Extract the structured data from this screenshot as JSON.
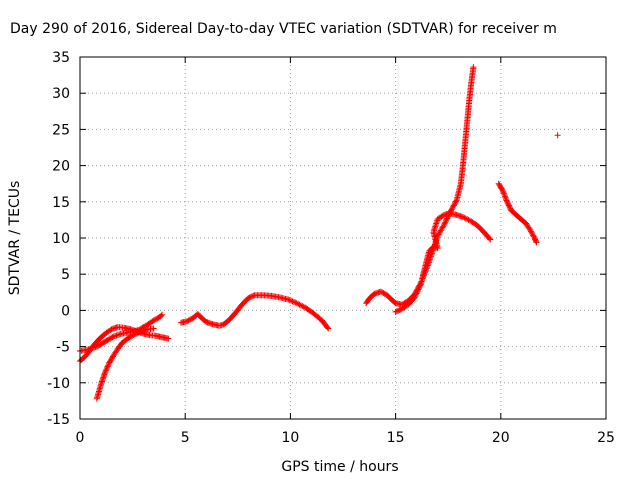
{
  "chart_data": {
    "type": "scatter",
    "title": "Day 290 of 2016, Sidereal Day-to-day VTEC variation (SDTVAR) for receiver m",
    "xlabel": "GPS time / hours",
    "ylabel": "SDTVAR / TECUs",
    "xlim": [
      0,
      25
    ],
    "ylim": [
      -15,
      35
    ],
    "xticks": [
      "0",
      "5",
      "10",
      "15",
      "20",
      "25"
    ],
    "yticks": [
      "-15",
      "-10",
      "-5",
      "0",
      "5",
      "10",
      "15",
      "20",
      "25",
      "30",
      "35"
    ],
    "grid": true,
    "marker": "+",
    "color": "#ff0000",
    "series": [
      {
        "name": "",
        "segments": [
          [
            [
              0.0,
              -7.0
            ],
            [
              0.3,
              -6.2
            ],
            [
              0.6,
              -5.0
            ],
            [
              0.9,
              -4.0
            ],
            [
              1.2,
              -3.2
            ],
            [
              1.5,
              -2.6
            ],
            [
              1.8,
              -2.3
            ],
            [
              2.1,
              -2.4
            ],
            [
              2.4,
              -2.6
            ],
            [
              2.7,
              -2.9
            ],
            [
              3.0,
              -3.2
            ],
            [
              3.3,
              -3.4
            ],
            [
              3.6,
              -3.5
            ],
            [
              3.9,
              -3.7
            ],
            [
              4.2,
              -3.9
            ]
          ],
          [
            [
              0.0,
              -5.6
            ],
            [
              0.4,
              -5.4
            ],
            [
              0.8,
              -5.0
            ],
            [
              1.2,
              -4.3
            ],
            [
              1.6,
              -3.6
            ],
            [
              2.0,
              -3.2
            ],
            [
              2.4,
              -3.0
            ],
            [
              2.8,
              -2.7
            ],
            [
              3.2,
              -2.0
            ],
            [
              3.5,
              -1.4
            ],
            [
              3.8,
              -0.9
            ],
            [
              3.9,
              -0.6
            ]
          ],
          [
            [
              0.8,
              -12.2
            ],
            [
              1.0,
              -10.2
            ],
            [
              1.2,
              -8.5
            ],
            [
              1.4,
              -7.2
            ],
            [
              1.6,
              -6.2
            ],
            [
              1.8,
              -5.3
            ],
            [
              2.0,
              -4.5
            ],
            [
              2.3,
              -3.8
            ],
            [
              2.6,
              -3.3
            ],
            [
              2.9,
              -2.9
            ],
            [
              3.2,
              -2.6
            ],
            [
              3.5,
              -2.5
            ]
          ],
          [
            [
              4.8,
              -1.7
            ],
            [
              5.1,
              -1.5
            ],
            [
              5.4,
              -1.0
            ],
            [
              5.6,
              -0.5
            ],
            [
              5.8,
              -1.1
            ],
            [
              6.0,
              -1.6
            ],
            [
              6.3,
              -1.9
            ],
            [
              6.6,
              -2.1
            ],
            [
              6.8,
              -2.0
            ],
            [
              7.1,
              -1.3
            ],
            [
              7.4,
              -0.3
            ],
            [
              7.7,
              0.8
            ],
            [
              8.0,
              1.7
            ],
            [
              8.3,
              2.1
            ],
            [
              8.7,
              2.1
            ],
            [
              9.1,
              2.0
            ],
            [
              9.5,
              1.8
            ],
            [
              9.9,
              1.5
            ],
            [
              10.3,
              1.0
            ],
            [
              10.7,
              0.4
            ],
            [
              11.1,
              -0.4
            ],
            [
              11.5,
              -1.4
            ],
            [
              11.8,
              -2.5
            ]
          ],
          [
            [
              13.6,
              1.0
            ],
            [
              13.8,
              1.8
            ],
            [
              14.0,
              2.3
            ],
            [
              14.3,
              2.6
            ],
            [
              14.6,
              2.1
            ],
            [
              14.8,
              1.5
            ],
            [
              15.0,
              1.0
            ],
            [
              15.3,
              0.8
            ],
            [
              15.6,
              1.3
            ],
            [
              15.9,
              2.2
            ],
            [
              16.2,
              3.8
            ],
            [
              16.5,
              6.0
            ],
            [
              16.8,
              8.5
            ],
            [
              17.0,
              10.3
            ],
            [
              17.3,
              11.8
            ],
            [
              17.6,
              13.6
            ],
            [
              17.9,
              15.2
            ],
            [
              18.1,
              17.5
            ],
            [
              18.2,
              20.0
            ],
            [
              18.3,
              23.0
            ],
            [
              18.4,
              26.0
            ],
            [
              18.5,
              29.0
            ],
            [
              18.6,
              31.5
            ],
            [
              18.7,
              33.6
            ]
          ],
          [
            [
              15.0,
              -0.2
            ],
            [
              15.3,
              0.2
            ],
            [
              15.6,
              0.8
            ],
            [
              15.9,
              1.8
            ],
            [
              16.2,
              3.6
            ],
            [
              16.4,
              6.0
            ],
            [
              16.6,
              8.2
            ],
            [
              16.8,
              8.8
            ],
            [
              17.0,
              8.6
            ],
            [
              16.8,
              10.8
            ],
            [
              17.0,
              12.6
            ],
            [
              17.3,
              13.2
            ],
            [
              17.6,
              13.4
            ],
            [
              17.9,
              13.2
            ],
            [
              18.2,
              12.9
            ],
            [
              18.6,
              12.3
            ],
            [
              18.9,
              11.7
            ],
            [
              19.2,
              10.8
            ],
            [
              19.5,
              9.8
            ]
          ],
          [
            [
              19.9,
              17.5
            ],
            [
              20.1,
              16.5
            ],
            [
              20.3,
              15.0
            ],
            [
              20.5,
              13.8
            ],
            [
              20.8,
              13.0
            ],
            [
              21.0,
              12.5
            ],
            [
              21.2,
              12.0
            ],
            [
              21.4,
              11.1
            ],
            [
              21.6,
              10.0
            ],
            [
              21.7,
              9.4
            ]
          ],
          [
            [
              22.7,
              24.2
            ]
          ]
        ]
      }
    ]
  }
}
